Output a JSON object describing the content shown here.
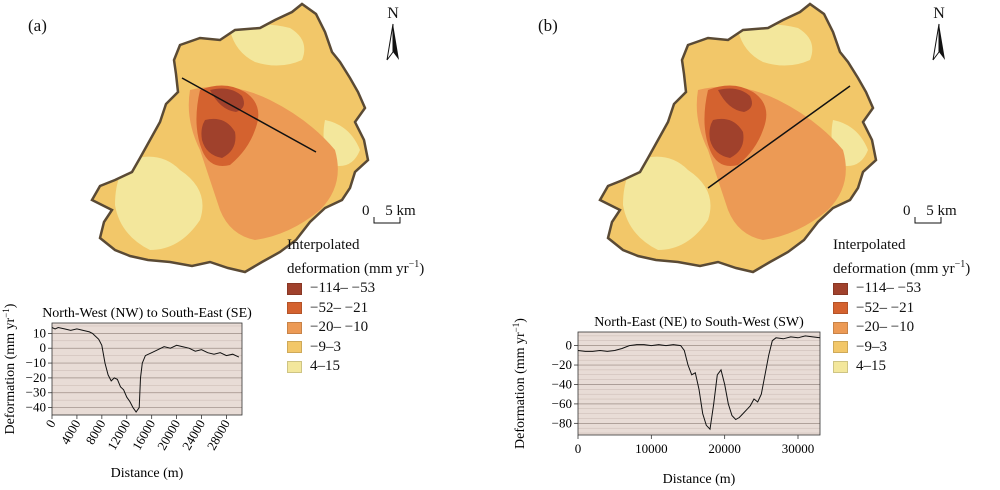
{
  "panels": [
    {
      "label": "(a)",
      "north": "N",
      "scale": {
        "zero": "0",
        "distance": "5 km"
      },
      "legend": {
        "title_line1": "Interpolated",
        "title_line2_pre": "deformation (mm yr",
        "title_line2_sup": "−1",
        "title_line2_post": ")",
        "classes": [
          {
            "label": "−114– −53",
            "color": "#a0412c"
          },
          {
            "label": "−52– −21",
            "color": "#d4622f"
          },
          {
            "label": "−20– −10",
            "color": "#ec9a55"
          },
          {
            "label": "−9–3",
            "color": "#f2c769"
          },
          {
            "label": "4–15",
            "color": "#f3e79c"
          }
        ]
      }
    },
    {
      "label": "(b)",
      "north": "N",
      "scale": {
        "zero": "0",
        "distance": "5 km"
      },
      "legend": {
        "title_line1": "Interpolated",
        "title_line2_pre": "deformation (mm yr",
        "title_line2_sup": "−1",
        "title_line2_post": ")",
        "classes": [
          {
            "label": "−114– −53",
            "color": "#a0412c"
          },
          {
            "label": "−52– −21",
            "color": "#d4622f"
          },
          {
            "label": "−20– −10",
            "color": "#ec9a55"
          },
          {
            "label": "−9–3",
            "color": "#f2c769"
          },
          {
            "label": "4–15",
            "color": "#f3e79c"
          }
        ]
      }
    }
  ],
  "chart_data": [
    {
      "type": "line",
      "title": "North-West (NW) to South-East (SE)",
      "xlabel": "Distance (m)",
      "ylabel_pre": "Deformation (mm yr",
      "ylabel_sup": "−1",
      "ylabel_post": ")",
      "xlim": [
        0,
        30500
      ],
      "ylim": [
        -45,
        17
      ],
      "xticks": [
        0,
        4000,
        8000,
        12000,
        16000,
        20000,
        24000,
        28000
      ],
      "yticks": [
        10,
        0,
        -10,
        -20,
        -30,
        -40
      ],
      "grid": true,
      "background": "#e8dcd6",
      "series": [
        {
          "x": [
            0,
            500,
            1000,
            2000,
            3000,
            4000,
            5000,
            6000,
            6500,
            7000,
            7500,
            8000,
            8500,
            9000,
            9500,
            10000,
            10500,
            11000,
            11500,
            12000,
            12500,
            13000,
            13500,
            14000,
            14200,
            14500,
            15000,
            16000,
            17000,
            18000,
            19000,
            20000,
            21000,
            22000,
            23000,
            24000,
            25000,
            26000,
            27000,
            28000,
            29000,
            30000
          ],
          "y": [
            14,
            13,
            14,
            13,
            12,
            13,
            12,
            11,
            10,
            8,
            6,
            2,
            -10,
            -18,
            -22,
            -20,
            -21,
            -26,
            -28,
            -33,
            -36,
            -40,
            -43,
            -40,
            -20,
            -10,
            -5,
            -3,
            -1,
            1,
            0,
            2,
            1,
            0,
            -2,
            -1,
            -3,
            -4,
            -3,
            -5,
            -4,
            -6
          ]
        }
      ]
    },
    {
      "type": "line",
      "title": "North-East (NE) to South-West (SW)",
      "xlabel": "Distance (m)",
      "ylabel_pre": "Deformation (mm yr",
      "ylabel_sup": "−1",
      "ylabel_post": ")",
      "xlim": [
        0,
        33000
      ],
      "ylim": [
        -92,
        14
      ],
      "xticks": [
        0,
        10000,
        20000,
        30000
      ],
      "yticks": [
        0,
        -20,
        -40,
        -60,
        -80
      ],
      "grid": true,
      "background": "#e8dcd6",
      "series": [
        {
          "x": [
            0,
            1000,
            2000,
            3000,
            4000,
            5000,
            6000,
            7000,
            8000,
            9000,
            10000,
            11000,
            12000,
            13000,
            14000,
            14500,
            15000,
            15500,
            16000,
            16500,
            17000,
            17500,
            18000,
            18500,
            19000,
            19500,
            20000,
            20500,
            21000,
            21500,
            22000,
            22500,
            23000,
            23500,
            24000,
            24500,
            25000,
            25500,
            26000,
            26500,
            27000,
            28000,
            29000,
            30000,
            31000,
            32000,
            33000
          ],
          "y": [
            -5,
            -6,
            -6,
            -5,
            -6,
            -5,
            -3,
            0,
            1,
            1,
            0,
            1,
            0,
            1,
            0,
            -5,
            -20,
            -30,
            -28,
            -45,
            -70,
            -82,
            -86,
            -60,
            -30,
            -25,
            -40,
            -60,
            -72,
            -76,
            -74,
            -70,
            -66,
            -62,
            -55,
            -58,
            -50,
            -30,
            -10,
            5,
            8,
            7,
            9,
            8,
            10,
            9,
            8
          ]
        }
      ]
    }
  ]
}
